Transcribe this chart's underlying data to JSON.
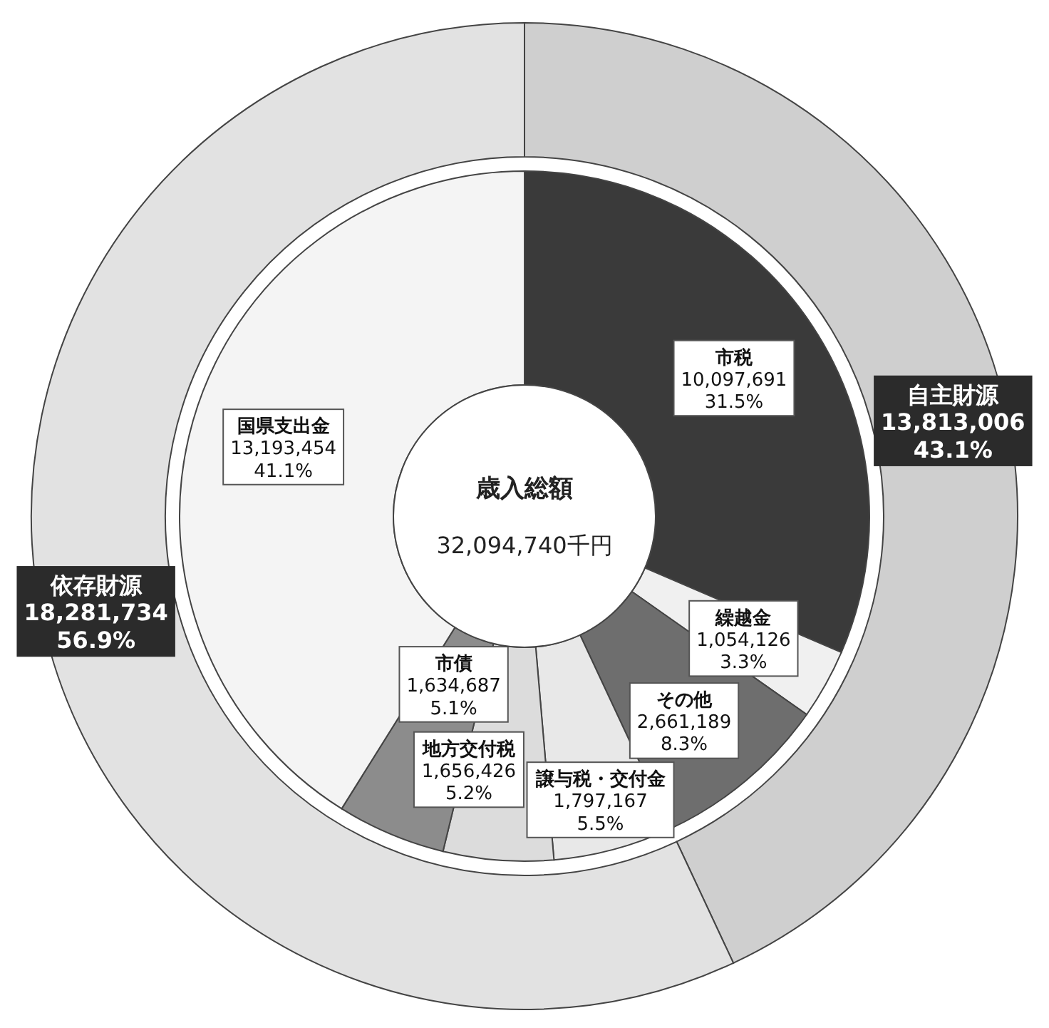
{
  "chart_data": [
    {
      "type": "donut",
      "categories": [
        "自主財源",
        "依存財源"
      ],
      "values": [
        13813006,
        18281734
      ],
      "colors": [
        "#cfcfcf",
        "#e2e2e2"
      ],
      "value_labels": [
        "13,813,006\n43.1%",
        "18,281,734\n56.9%"
      ]
    },
    {
      "type": "donut",
      "title": "歳入総額",
      "subtitle": "32,094,740千円",
      "categories": [
        "市税",
        "繰越金",
        "その他",
        "譲与税・交付金",
        "地方交付税",
        "市債",
        "国県支出金"
      ],
      "values": [
        10097691,
        1054126,
        2661189,
        1797167,
        1656426,
        1634687,
        13193454
      ],
      "colors": [
        "#3a3a3a",
        "#f0f0f0",
        "#6e6e6e",
        "#e8e8e8",
        "#dcdcdc",
        "#8c8c8c",
        "#f4f4f4"
      ],
      "value_labels": [
        "10,097,691\n31.5%",
        "1,054,126\n3.3%",
        "2,661,189\n8.3%",
        "1,797,167\n5.5%",
        "1,656,426\n5.2%",
        "1,634,687\n5.1%",
        "13,193,454\n41.1%"
      ]
    }
  ]
}
